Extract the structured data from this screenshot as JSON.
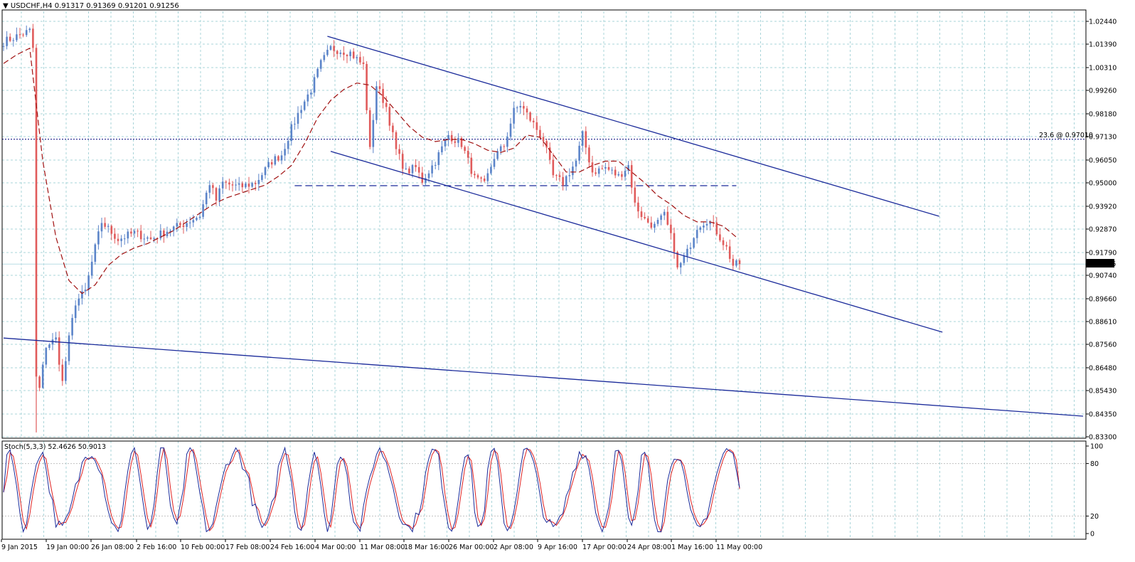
{
  "header": {
    "title": "USDCHF,H4",
    "ohlc": "0.91317 0.91369 0.91201 0.91256"
  },
  "current_price_label": "0.91256",
  "fib_label": "23.6 @ 0.97010",
  "stoch_title": "Stoch(5,3,3) 52.4626 50.9013",
  "colors": {
    "bull": "#5b84c9",
    "bear": "#e05b5b",
    "ma": "#a01010",
    "channel": "#1a2a9a",
    "fib": "#1a1a8a",
    "grid": "#a9d4d9",
    "stoch_main": "#1a2a9a",
    "stoch_signal": "#e02020"
  },
  "chart_data": [
    {
      "type": "candlestick",
      "symbol": "USDCHF",
      "timeframe": "H4",
      "ylim": [
        0.83,
        1.028
      ],
      "y_ticks": [
        "1.02440",
        "1.01390",
        "1.00310",
        "0.99260",
        "0.98180",
        "0.97130",
        "0.96050",
        "0.95000",
        "0.93920",
        "0.92870",
        "0.91790",
        "0.90740",
        "0.89660",
        "0.88610",
        "0.87560",
        "0.86480",
        "0.85430",
        "0.84350",
        "0.83300"
      ],
      "x_ticks": [
        "9 Jan 2015",
        "19 Jan 00:00",
        "26 Jan 08:00",
        "2 Feb 16:00",
        "10 Feb 00:00",
        "17 Feb 08:00",
        "24 Feb 16:00",
        "4 Mar 00:00",
        "11 Mar 08:00",
        "18 Mar 16:00",
        "26 Mar 00:00",
        "2 Apr 08:00",
        "9 Apr 16:00",
        "17 Apr 00:00",
        "24 Apr 08:00",
        "1 May 16:00",
        "11 May 00:00"
      ],
      "path_anchors": [
        [
          0,
          1.015
        ],
        [
          8,
          1.02
        ],
        [
          9,
          1.012
        ],
        [
          10,
          0.86
        ],
        [
          11,
          0.855
        ],
        [
          13,
          0.875
        ],
        [
          16,
          0.878
        ],
        [
          18,
          0.858
        ],
        [
          20,
          0.878
        ],
        [
          22,
          0.895
        ],
        [
          25,
          0.9
        ],
        [
          28,
          0.92
        ],
        [
          30,
          0.932
        ],
        [
          35,
          0.924
        ],
        [
          40,
          0.927
        ],
        [
          45,
          0.924
        ],
        [
          50,
          0.928
        ],
        [
          55,
          0.931
        ],
        [
          60,
          0.935
        ],
        [
          63,
          0.95
        ],
        [
          65,
          0.942
        ],
        [
          67,
          0.95
        ],
        [
          72,
          0.948
        ],
        [
          77,
          0.95
        ],
        [
          82,
          0.96
        ],
        [
          85,
          0.963
        ],
        [
          88,
          0.975
        ],
        [
          91,
          0.985
        ],
        [
          94,
          0.993
        ],
        [
          97,
          1.005
        ],
        [
          100,
          1.012
        ],
        [
          106,
          1.01
        ],
        [
          110,
          1.004
        ],
        [
          112,
          0.965
        ],
        [
          114,
          0.995
        ],
        [
          117,
          0.985
        ],
        [
          120,
          0.965
        ],
        [
          123,
          0.955
        ],
        [
          126,
          0.957
        ],
        [
          128,
          0.951
        ],
        [
          132,
          0.96
        ],
        [
          136,
          0.972
        ],
        [
          140,
          0.968
        ],
        [
          144,
          0.952
        ],
        [
          147,
          0.949
        ],
        [
          150,
          0.962
        ],
        [
          153,
          0.967
        ],
        [
          156,
          0.983
        ],
        [
          158,
          0.986
        ],
        [
          162,
          0.977
        ],
        [
          165,
          0.97
        ],
        [
          168,
          0.953
        ],
        [
          171,
          0.95
        ],
        [
          175,
          0.96
        ],
        [
          177,
          0.972
        ],
        [
          180,
          0.955
        ],
        [
          184,
          0.957
        ],
        [
          188,
          0.953
        ],
        [
          191,
          0.958
        ],
        [
          193,
          0.94
        ],
        [
          196,
          0.933
        ],
        [
          199,
          0.93
        ],
        [
          202,
          0.935
        ],
        [
          205,
          0.92
        ],
        [
          206,
          0.91
        ],
        [
          209,
          0.918
        ],
        [
          212,
          0.93
        ],
        [
          215,
          0.933
        ],
        [
          217,
          0.93
        ],
        [
          219,
          0.925
        ],
        [
          221,
          0.92
        ],
        [
          223,
          0.912
        ],
        [
          225,
          0.9126
        ]
      ],
      "moving_average": [
        [
          0,
          1.005
        ],
        [
          4,
          1.009
        ],
        [
          8,
          1.012
        ],
        [
          12,
          0.96
        ],
        [
          16,
          0.925
        ],
        [
          20,
          0.905
        ],
        [
          24,
          0.899
        ],
        [
          28,
          0.903
        ],
        [
          32,
          0.912
        ],
        [
          36,
          0.917
        ],
        [
          40,
          0.92
        ],
        [
          44,
          0.922
        ],
        [
          48,
          0.925
        ],
        [
          52,
          0.928
        ],
        [
          56,
          0.932
        ],
        [
          60,
          0.936
        ],
        [
          64,
          0.94
        ],
        [
          68,
          0.943
        ],
        [
          72,
          0.945
        ],
        [
          76,
          0.947
        ],
        [
          80,
          0.949
        ],
        [
          84,
          0.953
        ],
        [
          88,
          0.958
        ],
        [
          92,
          0.968
        ],
        [
          96,
          0.98
        ],
        [
          100,
          0.988
        ],
        [
          104,
          0.993
        ],
        [
          108,
          0.996
        ],
        [
          112,
          0.995
        ],
        [
          116,
          0.99
        ],
        [
          120,
          0.983
        ],
        [
          124,
          0.976
        ],
        [
          128,
          0.971
        ],
        [
          132,
          0.969
        ],
        [
          136,
          0.97
        ],
        [
          140,
          0.97
        ],
        [
          144,
          0.968
        ],
        [
          148,
          0.965
        ],
        [
          152,
          0.964
        ],
        [
          156,
          0.966
        ],
        [
          160,
          0.972
        ],
        [
          164,
          0.971
        ],
        [
          168,
          0.963
        ],
        [
          172,
          0.955
        ],
        [
          176,
          0.955
        ],
        [
          180,
          0.958
        ],
        [
          184,
          0.96
        ],
        [
          188,
          0.96
        ],
        [
          192,
          0.955
        ],
        [
          196,
          0.95
        ],
        [
          200,
          0.944
        ],
        [
          204,
          0.94
        ],
        [
          208,
          0.935
        ],
        [
          212,
          0.932
        ],
        [
          216,
          0.932
        ],
        [
          220,
          0.93
        ],
        [
          224,
          0.925
        ]
      ],
      "trend_lines": [
        {
          "name": "channel-upper",
          "from": [
            99,
            1.0175
          ],
          "to": [
            286,
            0.9346
          ]
        },
        {
          "name": "channel-lower",
          "from": [
            100,
            0.9645
          ],
          "to": [
            287,
            0.8812
          ]
        },
        {
          "name": "long-trendline",
          "from": [
            0,
            0.8785
          ],
          "to": [
            330,
            0.8425
          ]
        }
      ],
      "horizontal_levels": [
        {
          "name": "fib-23.6",
          "value": 0.9701,
          "style": "dotted"
        },
        {
          "name": "support",
          "value": 0.9487,
          "style": "dashed",
          "from_bar": 89,
          "to_bar": 224
        },
        {
          "name": "current-price",
          "value": 0.91256,
          "style": "solid"
        }
      ]
    },
    {
      "type": "line",
      "name": "Stoch(5,3,3)",
      "ylim": [
        0,
        100
      ],
      "levels": [
        20,
        80
      ],
      "y_ticks": [
        "100",
        "80",
        "20",
        "0"
      ],
      "main_last": 52.4626,
      "signal_last": 50.9013
    }
  ]
}
